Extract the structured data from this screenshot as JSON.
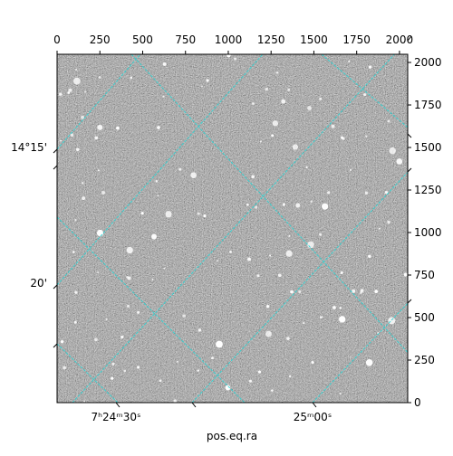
{
  "chart_data": {
    "type": "image",
    "xlabel": "pos.eq.ra",
    "xlim": [
      0,
      2048
    ],
    "xticks": [
      0,
      250,
      500,
      750,
      1000,
      1250,
      1500,
      1750,
      2000
    ],
    "ylim": [
      0,
      2048
    ],
    "yticks": [
      0,
      250,
      500,
      750,
      1000,
      1250,
      1500,
      1750,
      2000
    ],
    "ra_labels": [
      "7ʰ24ᵐ30ˢ",
      "25ᵐ00ˢ"
    ],
    "dec_labels": [
      "14°15'",
      "20'"
    ],
    "grid_color": "#2ad4d4"
  }
}
